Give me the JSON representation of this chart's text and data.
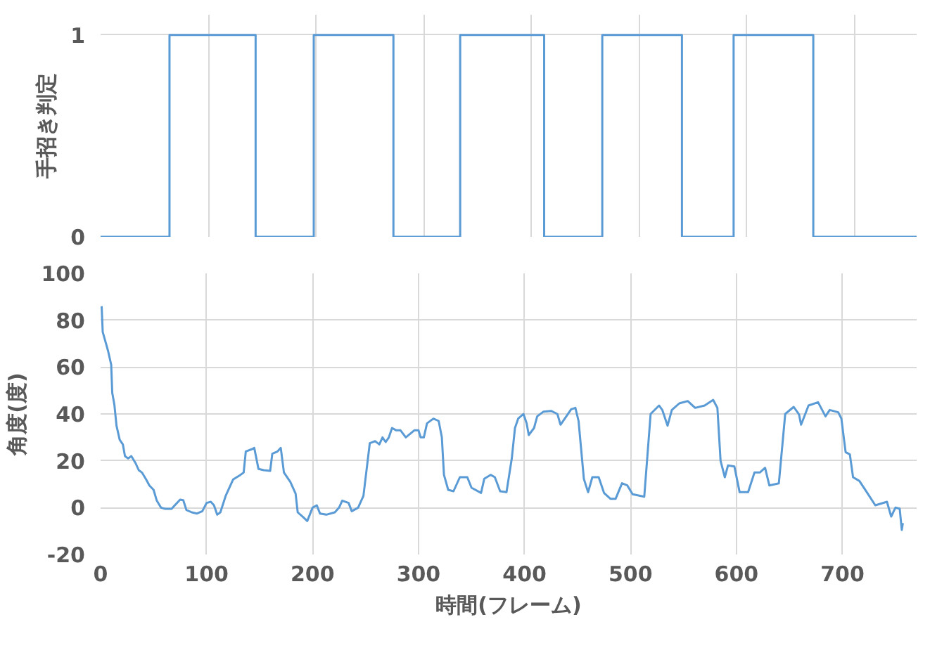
{
  "chart_data": [
    {
      "type": "step",
      "ylabel": "手招き判定",
      "color": "#5b9bd5",
      "grid": true,
      "tick_labels": "y",
      "categories": [
        null,
        null,
        null,
        null,
        null,
        null,
        null,
        null,
        null,
        null,
        null,
        null,
        null,
        null,
        null,
        null,
        null,
        null,
        null,
        null,
        null,
        null,
        null,
        null,
        null,
        null,
        null,
        null,
        null,
        null,
        null,
        null,
        null,
        null,
        null,
        null,
        null,
        null,
        null,
        null,
        null,
        null,
        null,
        null,
        null,
        null,
        null,
        null,
        null,
        null,
        null,
        null,
        null,
        null,
        null,
        null,
        null,
        null,
        null,
        null,
        null,
        null,
        null,
        null,
        null,
        null,
        null,
        null,
        null,
        null,
        null,
        null,
        null,
        null,
        null,
        null,
        null,
        null,
        null,
        null,
        null,
        null,
        null,
        null,
        null,
        null,
        null,
        null,
        null,
        null,
        null,
        null,
        null,
        null,
        null,
        null,
        null,
        null,
        null,
        null,
        null,
        null,
        null,
        null,
        null,
        null,
        null,
        null,
        null,
        null,
        null,
        null,
        null,
        null,
        null,
        null,
        null,
        null,
        null,
        null,
        null,
        null,
        null,
        null,
        null,
        null,
        null,
        null,
        null,
        null,
        null,
        null,
        null,
        null,
        null,
        null,
        null,
        null,
        null,
        null,
        null,
        null,
        null,
        null,
        null,
        null,
        null,
        null,
        null,
        null,
        null,
        null,
        null,
        null,
        null,
        null,
        null,
        null,
        null,
        null,
        null,
        null,
        null,
        null,
        null,
        null,
        null,
        null,
        null,
        null,
        null,
        null,
        null,
        null,
        null,
        null,
        null,
        null,
        null,
        null,
        null,
        null,
        null,
        null,
        null,
        null,
        null,
        null,
        null,
        null,
        null,
        null,
        null,
        null,
        null,
        null,
        null,
        null,
        null,
        null,
        null,
        null,
        null,
        null,
        null,
        null,
        null,
        null,
        null,
        null,
        null,
        null,
        null,
        null,
        null,
        null,
        null,
        null,
        null,
        null,
        null,
        null,
        null,
        null,
        null,
        null,
        null,
        null,
        null,
        null,
        null,
        null,
        null,
        null,
        null,
        null,
        null,
        null,
        null,
        null,
        null,
        null,
        null,
        null,
        null,
        null,
        null,
        null,
        null,
        null,
        null,
        null,
        null,
        null,
        null,
        null,
        null,
        null,
        null,
        null,
        null,
        null,
        null,
        null,
        null,
        null,
        null,
        null,
        null,
        null,
        null,
        null,
        null,
        null,
        null,
        null,
        null,
        null,
        null,
        null,
        null,
        null,
        null,
        null,
        null,
        null,
        null,
        null,
        null,
        null,
        null,
        null,
        null,
        null,
        null,
        null,
        null,
        null,
        null,
        null,
        null,
        null,
        null,
        null,
        null,
        null,
        null,
        null,
        null,
        null,
        null,
        null,
        null,
        null,
        null,
        null,
        null,
        null,
        null,
        null,
        null,
        null,
        null,
        null,
        null,
        null,
        null,
        null,
        null,
        null,
        null,
        null,
        null,
        null,
        null,
        null,
        null,
        null,
        null,
        null,
        null,
        null,
        null,
        null,
        null,
        null,
        null,
        null,
        null,
        null,
        null,
        null,
        null,
        null,
        null,
        null,
        null,
        null,
        null,
        null,
        null,
        null,
        null,
        null,
        null,
        null,
        null,
        null,
        null,
        null,
        null,
        null,
        null,
        null,
        null,
        null,
        null,
        null,
        null,
        null
      ],
      "values": [
        0,
        0,
        0,
        0,
        0,
        0,
        0,
        0,
        0,
        0,
        0,
        0,
        0,
        0,
        0,
        0,
        0,
        0,
        0,
        0,
        0,
        0,
        0,
        0,
        0,
        0,
        0,
        0,
        0,
        0,
        0,
        0,
        1,
        1,
        1,
        1,
        1,
        1,
        1,
        1,
        1,
        1,
        1,
        1,
        1,
        1,
        1,
        1,
        1,
        1,
        1,
        1,
        1,
        1,
        1,
        1,
        1,
        1,
        1,
        1,
        1,
        1,
        1,
        1,
        1,
        1,
        1,
        1,
        1,
        1,
        1,
        1,
        0,
        0,
        0,
        0,
        0,
        0,
        0,
        0,
        0,
        0,
        0,
        0,
        0,
        0,
        0,
        0,
        0,
        0,
        0,
        0,
        0,
        0,
        0,
        0,
        0,
        0,
        0,
        1,
        1,
        1,
        1,
        1,
        1,
        1,
        1,
        1,
        1,
        1,
        1,
        1,
        1,
        1,
        1,
        1,
        1,
        1,
        1,
        1,
        1,
        1,
        1,
        1,
        1,
        1,
        1,
        1,
        1,
        1,
        1,
        1,
        1,
        1,
        1,
        1,
        0,
        0,
        0,
        0,
        0,
        0,
        0,
        0,
        0,
        0,
        0,
        0,
        0,
        0,
        0,
        0,
        0,
        0,
        0,
        0,
        0,
        0,
        0,
        0,
        0,
        0,
        0,
        0,
        0,
        0,
        0,
        1,
        1,
        1,
        1,
        1,
        1,
        1,
        1,
        1,
        1,
        1,
        1,
        1,
        1,
        1,
        1,
        1,
        1,
        1,
        1,
        1,
        1,
        1,
        1,
        1,
        1,
        1,
        1,
        1,
        1,
        1,
        1,
        1,
        1,
        1,
        1,
        1,
        1,
        1,
        0,
        0,
        0,
        0,
        0,
        0,
        0,
        0,
        0,
        0,
        0,
        0,
        0,
        0,
        0,
        0,
        0,
        0,
        0,
        0,
        0,
        0,
        0,
        0,
        0,
        0,
        0,
        1,
        1,
        1,
        1,
        1,
        1,
        1,
        1,
        1,
        1,
        1,
        1,
        1,
        1,
        1,
        1,
        1,
        1,
        1,
        1,
        1,
        1,
        1,
        1,
        1,
        1,
        1,
        1,
        1,
        1,
        1,
        1,
        1,
        1,
        1,
        1,
        1,
        0,
        0,
        0,
        0,
        0,
        0,
        0,
        0,
        0,
        0,
        0,
        0,
        0,
        0,
        0,
        0,
        0,
        0,
        0,
        0,
        0,
        0,
        0,
        0,
        1,
        1,
        1,
        1,
        1,
        1,
        1,
        1,
        1,
        1,
        1,
        1,
        1,
        1,
        1,
        1,
        1,
        1,
        1,
        1,
        1,
        1,
        1,
        1,
        1,
        1,
        1,
        1,
        1,
        1,
        1,
        1,
        1,
        1,
        1,
        1,
        1,
        0,
        0,
        0,
        0,
        0,
        0,
        0,
        0,
        0,
        0,
        0,
        0,
        0,
        0,
        0,
        0,
        0,
        0,
        0,
        0,
        0,
        0,
        0,
        0,
        0,
        0,
        0,
        0,
        0,
        0,
        0,
        0,
        0,
        0,
        0,
        0,
        0,
        0,
        0,
        0,
        0,
        0,
        0,
        0,
        0,
        0,
        0,
        0,
        0
      ],
      "ylim": [
        0,
        1.1
      ],
      "yticks": [
        0,
        1
      ]
    },
    {
      "type": "line",
      "xlabel": "時間(フレーム)",
      "ylabel": "角度(度)",
      "color": "#5b9bd5",
      "grid": true,
      "x": [
        1,
        2,
        7,
        10,
        11,
        13,
        15,
        18,
        21,
        23,
        26,
        29,
        33,
        36,
        39,
        43,
        46,
        50,
        53,
        57,
        61,
        67,
        70,
        75,
        78,
        81,
        86,
        91,
        96,
        100,
        104,
        107,
        110,
        113,
        118,
        125,
        132,
        135,
        137,
        143,
        145,
        149,
        154,
        160,
        162,
        167,
        170,
        173,
        179,
        184,
        186,
        191,
        195,
        200,
        204,
        207,
        213,
        221,
        225,
        228,
        234,
        237,
        243,
        248,
        252,
        254,
        259,
        263,
        266,
        269,
        272,
        275,
        279,
        283,
        288,
        296,
        300,
        302,
        305,
        308,
        314,
        319,
        322,
        324,
        328,
        333,
        339,
        346,
        350,
        359,
        362,
        368,
        372,
        377,
        383,
        388,
        391,
        394,
        399,
        402,
        404,
        409,
        412,
        418,
        425,
        431,
        434,
        438,
        444,
        448,
        451,
        456,
        460,
        464,
        470,
        475,
        481,
        486,
        492,
        497,
        502,
        513,
        519,
        527,
        530,
        535,
        539,
        546,
        554,
        561,
        570,
        578,
        582,
        585,
        589,
        592,
        598,
        603,
        611,
        617,
        622,
        627,
        631,
        640,
        646,
        654,
        659,
        661,
        668,
        677,
        684,
        688,
        696,
        699,
        703,
        707,
        710,
        716,
        723,
        731,
        742,
        746,
        750,
        754,
        756,
        757
      ],
      "values": [
        86,
        75,
        67,
        61,
        49,
        44,
        35,
        29,
        27,
        22,
        21,
        22,
        19,
        16,
        15,
        12,
        9.5,
        7.6,
        3,
        0,
        -0.5,
        -0.5,
        1,
        3.4,
        3.2,
        -1,
        -2,
        -2.5,
        -1.5,
        2,
        2.5,
        1,
        -3,
        -2,
        5,
        12,
        14,
        15,
        24,
        25,
        25.5,
        16.5,
        16,
        15.7,
        23,
        24,
        25.5,
        15,
        11,
        6,
        -2,
        -4,
        -5.7,
        0,
        1,
        -2.5,
        -3,
        -2,
        0,
        3,
        2,
        -1.5,
        0,
        5,
        20,
        27.5,
        28.4,
        27,
        30,
        28,
        30,
        34,
        33,
        33,
        30,
        33,
        33,
        30,
        30,
        36,
        38,
        37,
        30,
        14,
        7.6,
        7,
        13,
        13,
        8.5,
        6.3,
        12.3,
        14,
        13,
        7,
        6.6,
        21,
        34,
        38,
        40,
        36,
        31,
        34,
        39,
        41,
        41.3,
        40,
        35.4,
        38,
        42,
        42.6,
        37,
        12.3,
        6.6,
        13,
        13,
        6.3,
        3.8,
        3.8,
        10.4,
        9.5,
        5.7,
        4.7,
        40,
        43.6,
        41.7,
        35,
        41.7,
        44.5,
        45.5,
        42.6,
        43.6,
        46,
        42.6,
        20,
        13,
        18,
        17.6,
        6.6,
        6.6,
        15,
        15,
        17,
        9.5,
        10.4,
        40,
        43,
        39.8,
        35.4,
        43.6,
        45,
        39,
        41.7,
        40.7,
        38,
        23.7,
        22.7,
        13,
        11.4,
        6.6,
        1,
        2.5,
        -3.8,
        0,
        -0.4,
        -9.5,
        -6.6
      ],
      "xlim": [
        0,
        770
      ],
      "xticks": [
        0,
        100,
        200,
        300,
        400,
        500,
        600,
        700
      ],
      "ylim": [
        -20,
        100
      ],
      "yticks": [
        -20,
        0,
        20,
        40,
        60,
        80,
        100
      ]
    }
  ]
}
